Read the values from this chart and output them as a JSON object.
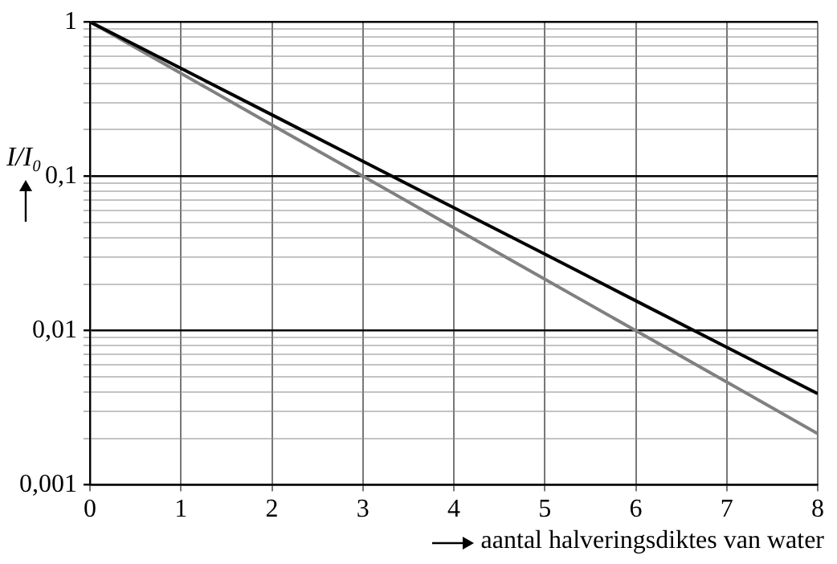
{
  "chart_data": {
    "type": "line",
    "xlabel": "aantal halveringsdiktes van water",
    "ylabel": "I/I₀",
    "x": [
      0,
      1,
      2,
      3,
      4,
      5,
      6,
      7,
      8
    ],
    "series": [
      {
        "color": "#000000",
        "values": [
          1,
          0.5,
          0.25,
          0.125,
          0.0625,
          0.0313,
          0.0156,
          0.0078,
          0.0039
        ]
      },
      {
        "color": "#808080",
        "values": [
          1,
          0.464,
          0.215,
          0.1,
          0.0464,
          0.0215,
          0.01,
          0.00464,
          0.00215
        ]
      }
    ],
    "log": "y",
    "xlim": [
      0,
      8
    ],
    "xticks": [
      0,
      1,
      2,
      3,
      4,
      5,
      6,
      7,
      8
    ],
    "ylim": [
      0.001,
      1
    ],
    "yticks": [
      {
        "value": 0.001,
        "label": "0,001"
      },
      {
        "value": 0.002,
        "label": null
      },
      {
        "value": 0.003,
        "label": null
      },
      {
        "value": 0.004,
        "label": null
      },
      {
        "value": 0.005,
        "label": null
      },
      {
        "value": 0.006,
        "label": null
      },
      {
        "value": 0.007,
        "label": null
      },
      {
        "value": 0.008,
        "label": null
      },
      {
        "value": 0.009,
        "label": null
      },
      {
        "value": 0.01,
        "label": "0,01"
      },
      {
        "value": 0.02,
        "label": null
      },
      {
        "value": 0.03,
        "label": null
      },
      {
        "value": 0.04,
        "label": null
      },
      {
        "value": 0.05,
        "label": null
      },
      {
        "value": 0.06,
        "label": null
      },
      {
        "value": 0.07,
        "label": null
      },
      {
        "value": 0.08,
        "label": null
      },
      {
        "value": 0.09,
        "label": null
      },
      {
        "value": 0.1,
        "label": "0,1"
      },
      {
        "value": 0.2,
        "label": null
      },
      {
        "value": 0.3,
        "label": null
      },
      {
        "value": 0.4,
        "label": null
      },
      {
        "value": 0.5,
        "label": null
      },
      {
        "value": 0.6,
        "label": null
      },
      {
        "value": 0.7,
        "label": null
      },
      {
        "value": 0.8,
        "label": null
      },
      {
        "value": 0.9,
        "label": null
      },
      {
        "value": 1,
        "label": "1"
      }
    ],
    "grid": true,
    "legend": false,
    "marker": "none",
    "line_style": "solid"
  }
}
